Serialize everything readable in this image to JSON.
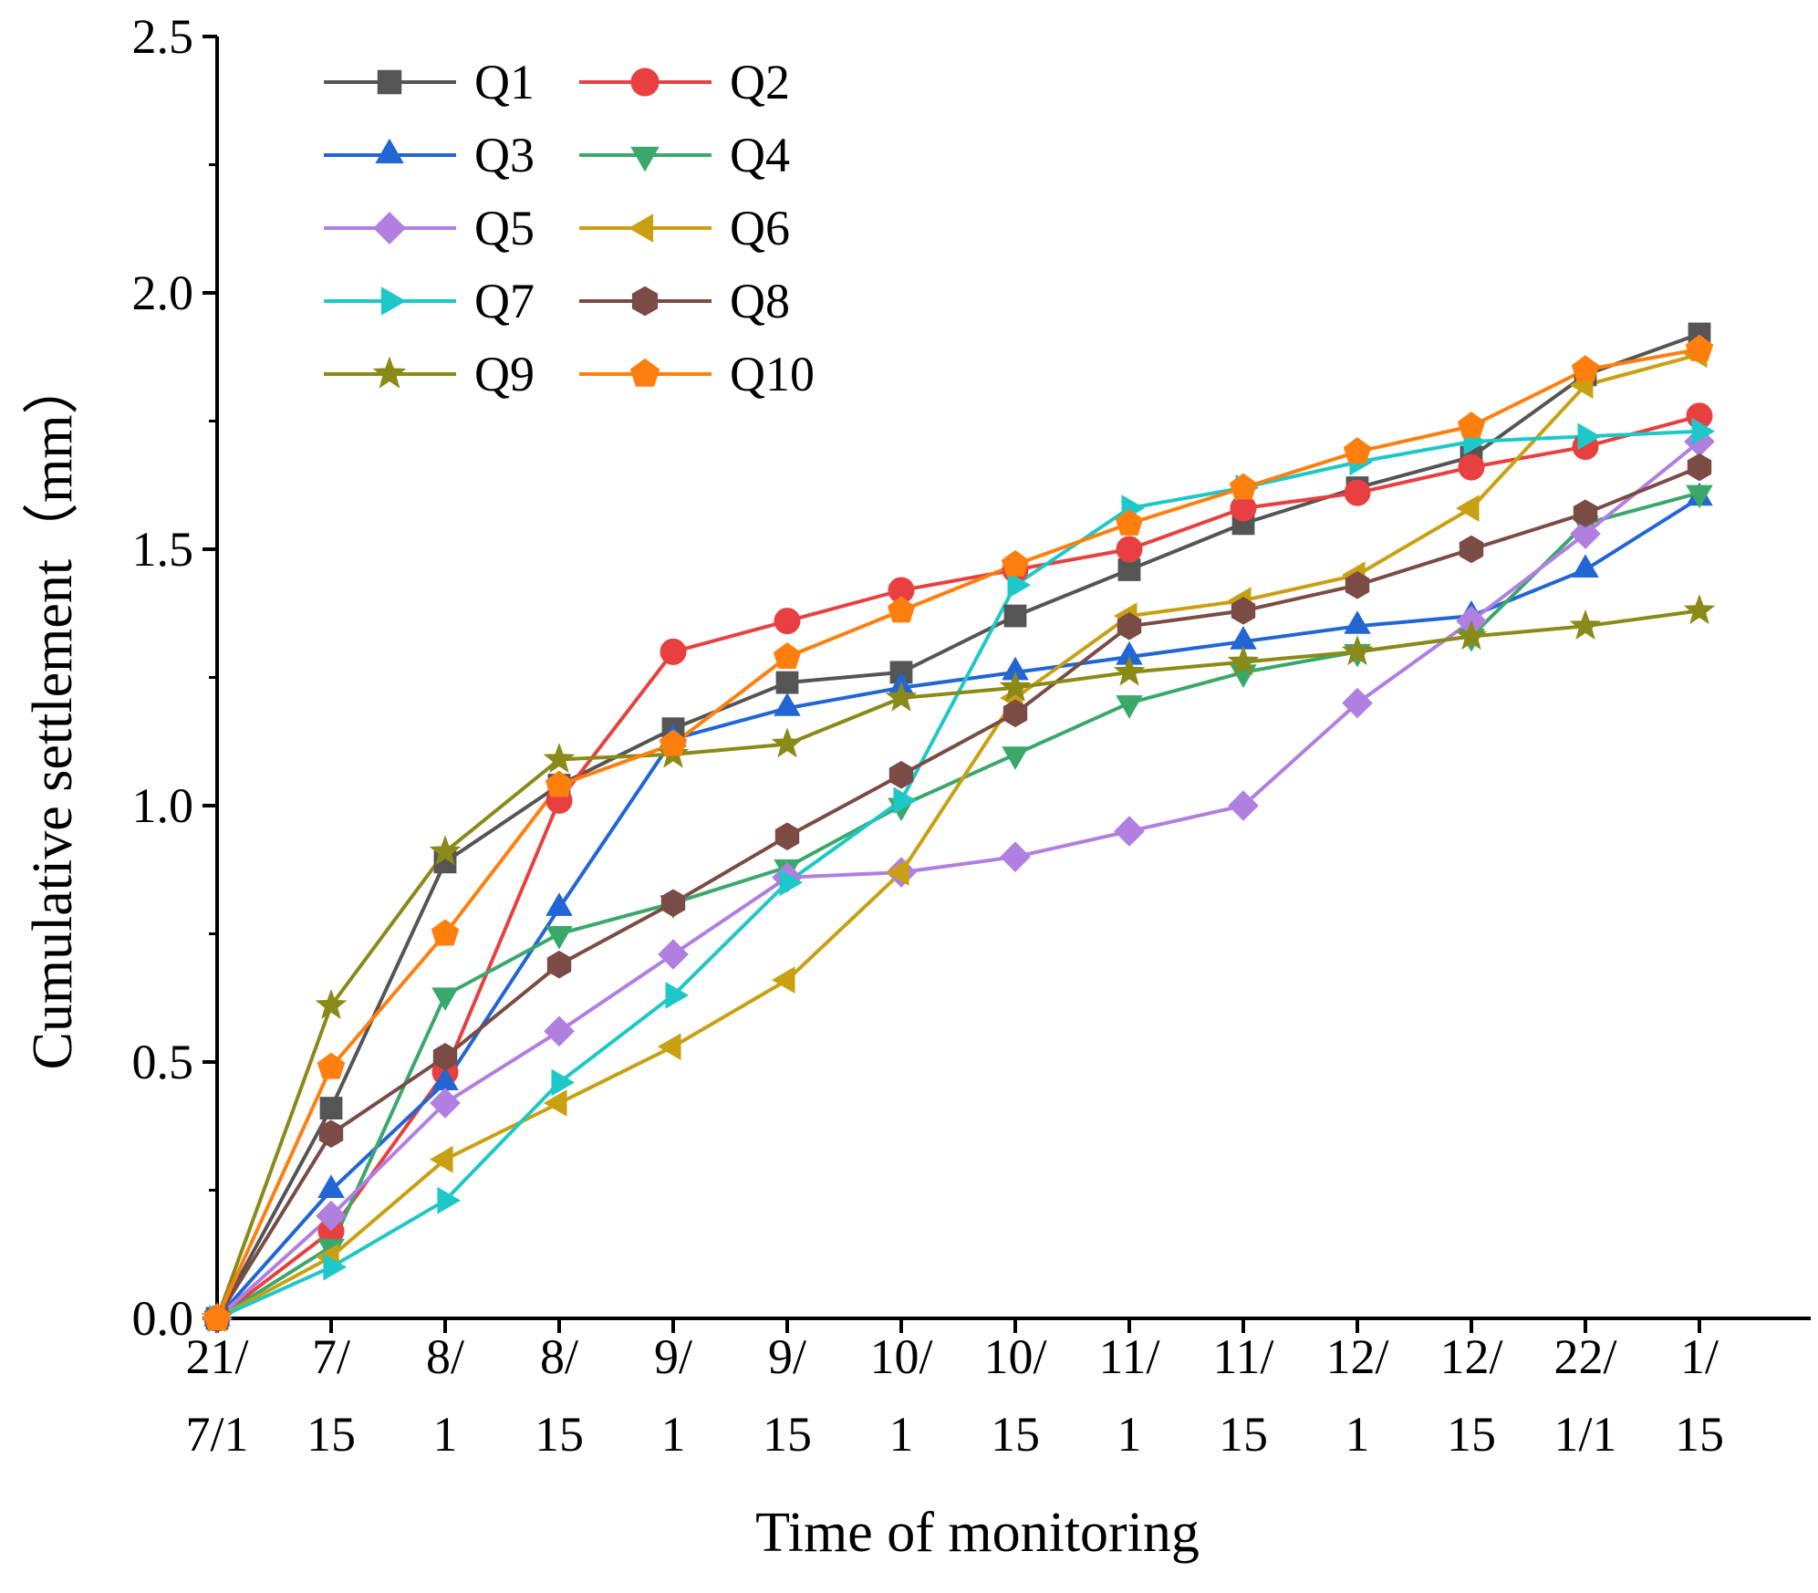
{
  "chart_data": {
    "type": "line",
    "title": "",
    "xlabel": "Time of monitoring",
    "ylabel": "Cumulative settlement（mm）",
    "ylim": [
      0,
      2.5
    ],
    "yticks": [
      "0.0",
      "0.5",
      "1.0",
      "1.5",
      "2.0",
      "2.5"
    ],
    "categories": [
      [
        "21/",
        "7/1"
      ],
      [
        "7/",
        "15"
      ],
      [
        "8/",
        "1"
      ],
      [
        "8/",
        "15"
      ],
      [
        "9/",
        "1"
      ],
      [
        "9/",
        "15"
      ],
      [
        "10/",
        "1"
      ],
      [
        "10/",
        "15"
      ],
      [
        "11/",
        "1"
      ],
      [
        "11/",
        "15"
      ],
      [
        "12/",
        "1"
      ],
      [
        "12/",
        "15"
      ],
      [
        "22/",
        "1/1"
      ],
      [
        "1/",
        "15"
      ]
    ],
    "legend_position": "top-left",
    "series": [
      {
        "name": "Q1",
        "color": "#555555",
        "marker": "square",
        "values": [
          0,
          0.41,
          0.89,
          1.04,
          1.15,
          1.24,
          1.26,
          1.37,
          1.46,
          1.55,
          1.62,
          1.68,
          1.84,
          1.92
        ]
      },
      {
        "name": "Q2",
        "color": "#e84040",
        "marker": "circle",
        "values": [
          0,
          0.17,
          0.48,
          1.01,
          1.3,
          1.36,
          1.42,
          1.46,
          1.5,
          1.58,
          1.61,
          1.66,
          1.7,
          1.76
        ]
      },
      {
        "name": "Q3",
        "color": "#2166d4",
        "marker": "triangle-up",
        "values": [
          0,
          0.25,
          0.46,
          0.8,
          1.13,
          1.19,
          1.23,
          1.26,
          1.29,
          1.32,
          1.35,
          1.37,
          1.46,
          1.6
        ]
      },
      {
        "name": "Q4",
        "color": "#3aa86b",
        "marker": "triangle-down",
        "values": [
          0,
          0.14,
          0.63,
          0.75,
          0.81,
          0.88,
          1.0,
          1.1,
          1.2,
          1.26,
          1.3,
          1.33,
          1.55,
          1.61
        ]
      },
      {
        "name": "Q5",
        "color": "#b07fe0",
        "marker": "diamond",
        "values": [
          0,
          0.2,
          0.42,
          0.56,
          0.71,
          0.86,
          0.87,
          0.9,
          0.95,
          1.0,
          1.2,
          1.36,
          1.53,
          1.71
        ]
      },
      {
        "name": "Q6",
        "color": "#c9a012",
        "marker": "triangle-left",
        "values": [
          0,
          0.12,
          0.31,
          0.42,
          0.53,
          0.66,
          0.87,
          1.21,
          1.37,
          1.4,
          1.45,
          1.58,
          1.82,
          1.88
        ]
      },
      {
        "name": "Q7",
        "color": "#1ec8c8",
        "marker": "triangle-right",
        "values": [
          0,
          0.1,
          0.23,
          0.46,
          0.63,
          0.85,
          1.01,
          1.43,
          1.58,
          1.62,
          1.67,
          1.71,
          1.72,
          1.73
        ]
      },
      {
        "name": "Q8",
        "color": "#7b4b45",
        "marker": "hexagon",
        "values": [
          0,
          0.36,
          0.51,
          0.69,
          0.81,
          0.94,
          1.06,
          1.18,
          1.35,
          1.38,
          1.43,
          1.5,
          1.57,
          1.66
        ]
      },
      {
        "name": "Q9",
        "color": "#8a8a18",
        "marker": "star",
        "values": [
          0,
          0.61,
          0.91,
          1.09,
          1.1,
          1.12,
          1.21,
          1.23,
          1.26,
          1.28,
          1.3,
          1.33,
          1.35,
          1.38
        ]
      },
      {
        "name": "Q10",
        "color": "#ff7f0e",
        "marker": "pentagon",
        "values": [
          0,
          0.49,
          0.75,
          1.04,
          1.12,
          1.29,
          1.38,
          1.47,
          1.55,
          1.62,
          1.69,
          1.74,
          1.85,
          1.89
        ]
      }
    ]
  }
}
